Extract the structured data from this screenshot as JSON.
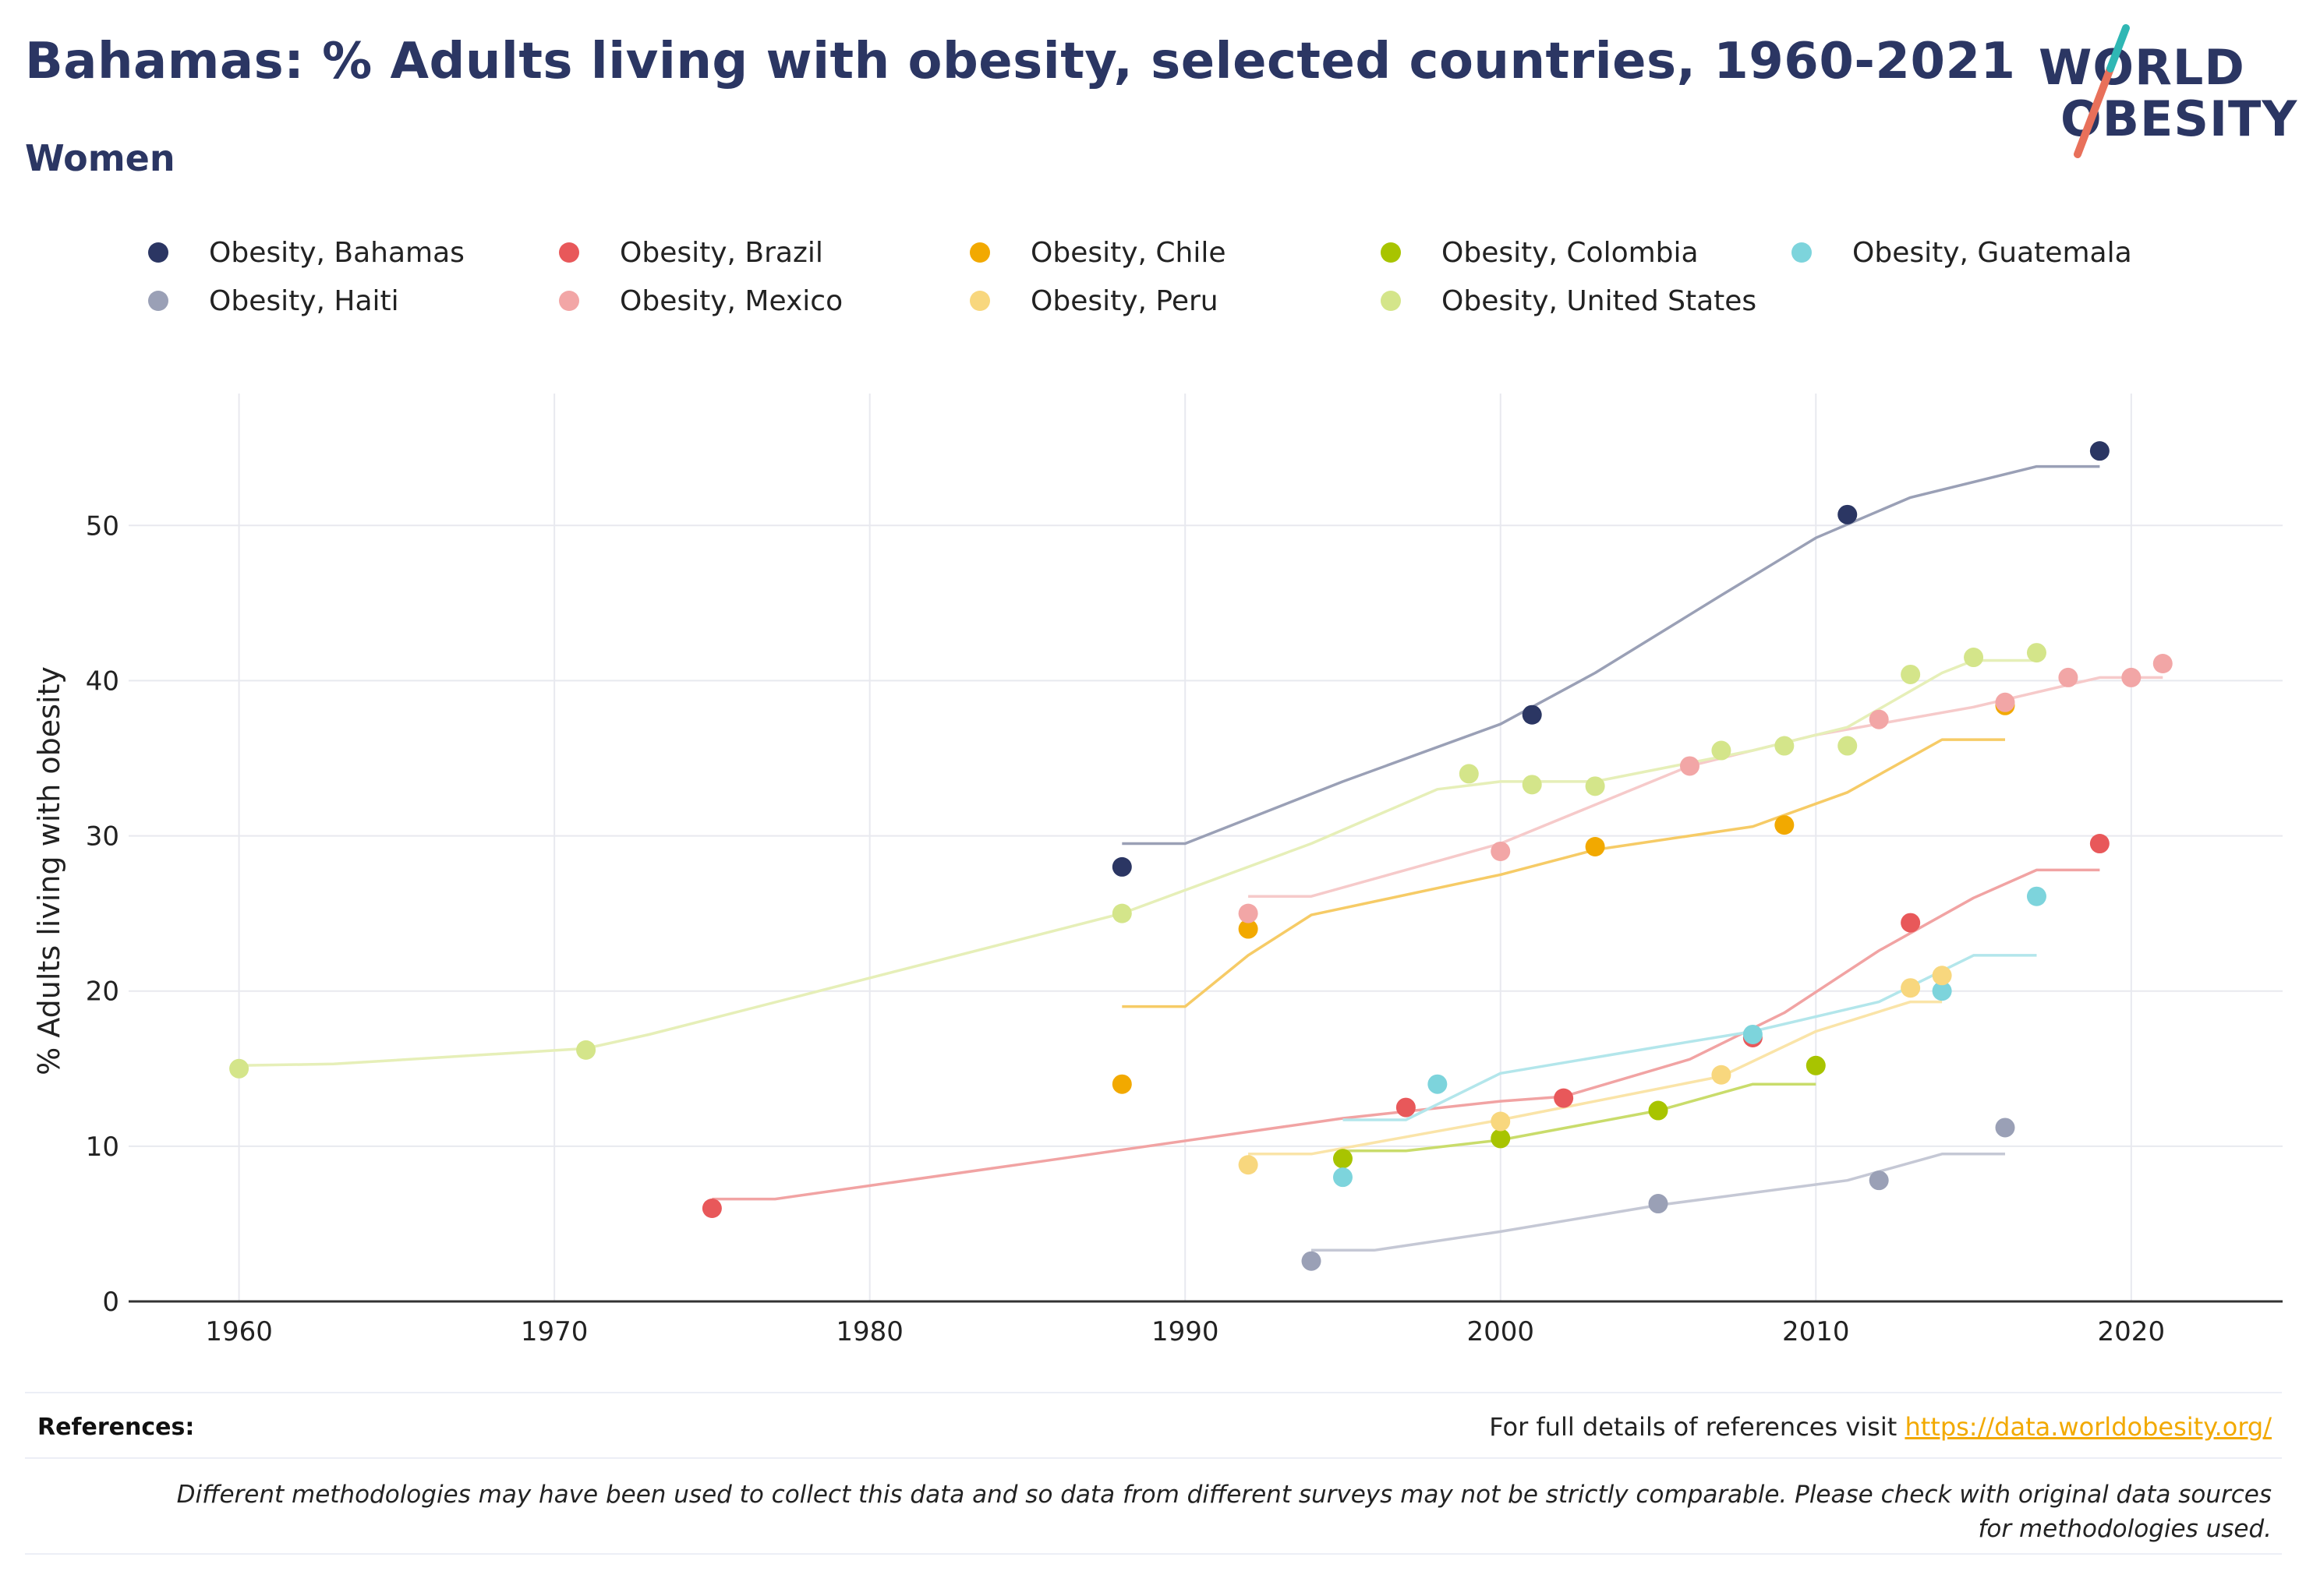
{
  "header": {
    "title": "Bahamas: % Adults living with obesity, selected countries, 1960-2021",
    "subtitle": "Women"
  },
  "logo": {
    "line1": "WORLD",
    "line2": "OBESITY"
  },
  "footer": {
    "references_label": "References:",
    "references_text": "For full details of references visit ",
    "references_link": "https://data.worldobesity.org/",
    "disclaimer": "Different methodologies may have been used to collect this data and so data from different surveys may not be strictly comparable. Please check with original data sources for methodologies used."
  },
  "chart_data": {
    "type": "scatter",
    "title": "Bahamas: % Adults living with obesity, selected countries, 1960-2021",
    "subtitle": "Women",
    "ylabel": "% Adults living with obesity",
    "xlabel": "",
    "xlim": [
      1956.5,
      2024.8
    ],
    "ylim": [
      0,
      58.5
    ],
    "xticks": [
      1960,
      1970,
      1980,
      1990,
      2000,
      2010,
      2020
    ],
    "yticks": [
      0,
      10,
      20,
      30,
      40,
      50
    ],
    "grid": true,
    "legend_position": "top",
    "series": [
      {
        "name": "Obesity, Bahamas",
        "color": "#2b3663",
        "line_color": "#9aa0b6",
        "points": [
          [
            1988,
            28.0
          ],
          [
            2001,
            37.8
          ],
          [
            2011,
            50.7
          ],
          [
            2019,
            54.8
          ]
        ],
        "trend": [
          [
            1988,
            29.5
          ],
          [
            1990,
            29.5
          ],
          [
            1995,
            33.5
          ],
          [
            2000,
            37.2
          ],
          [
            2003,
            40.5
          ],
          [
            2007,
            45.5
          ],
          [
            2010,
            49.2
          ],
          [
            2013,
            51.8
          ],
          [
            2017,
            53.8
          ],
          [
            2019,
            53.8
          ]
        ]
      },
      {
        "name": "Obesity, Brazil",
        "color": "#e8585a",
        "line_color": "#f1a3a3",
        "points": [
          [
            1975,
            6.0
          ],
          [
            1997,
            12.5
          ],
          [
            2002,
            13.1
          ],
          [
            2008,
            17.0
          ],
          [
            2013,
            24.4
          ],
          [
            2019,
            29.5
          ]
        ],
        "trend": [
          [
            1975,
            6.6
          ],
          [
            1977,
            6.6
          ],
          [
            1985,
            8.9
          ],
          [
            1995,
            11.8
          ],
          [
            2000,
            12.9
          ],
          [
            2002,
            13.2
          ],
          [
            2006,
            15.6
          ],
          [
            2009,
            18.6
          ],
          [
            2012,
            22.6
          ],
          [
            2015,
            26.0
          ],
          [
            2017,
            27.8
          ],
          [
            2019,
            27.8
          ]
        ]
      },
      {
        "name": "Obesity, Chile",
        "color": "#f2a900",
        "line_color": "#f6cb66",
        "points": [
          [
            1988,
            14.0
          ],
          [
            1992,
            24.0
          ],
          [
            2003,
            29.3
          ],
          [
            2009,
            30.7
          ],
          [
            2016,
            38.4
          ]
        ],
        "trend": [
          [
            1988,
            19.0
          ],
          [
            1990,
            19.0
          ],
          [
            1992,
            22.3
          ],
          [
            1994,
            24.9
          ],
          [
            2000,
            27.5
          ],
          [
            2003,
            29.1
          ],
          [
            2008,
            30.6
          ],
          [
            2011,
            32.8
          ],
          [
            2014,
            36.2
          ],
          [
            2016,
            36.2
          ]
        ]
      },
      {
        "name": "Obesity, Colombia",
        "color": "#a8c400",
        "line_color": "#c9dc6b",
        "points": [
          [
            1995,
            9.2
          ],
          [
            2000,
            10.5
          ],
          [
            2005,
            12.3
          ],
          [
            2010,
            15.2
          ]
        ],
        "trend": [
          [
            1995,
            9.7
          ],
          [
            1997,
            9.7
          ],
          [
            2000,
            10.4
          ],
          [
            2005,
            12.3
          ],
          [
            2008,
            14.0
          ],
          [
            2010,
            14.0
          ]
        ]
      },
      {
        "name": "Obesity, Guatemala",
        "color": "#7dd4dc",
        "line_color": "#b3e6eb",
        "points": [
          [
            1995,
            8.0
          ],
          [
            1998,
            14.0
          ],
          [
            2008,
            17.2
          ],
          [
            2014,
            20.0
          ],
          [
            2017,
            26.1
          ]
        ],
        "trend": [
          [
            1995,
            11.7
          ],
          [
            1997,
            11.7
          ],
          [
            2000,
            14.7
          ],
          [
            2005,
            16.4
          ],
          [
            2008,
            17.4
          ],
          [
            2012,
            19.3
          ],
          [
            2015,
            22.3
          ],
          [
            2017,
            22.3
          ]
        ]
      },
      {
        "name": "Obesity, Haiti",
        "color": "#9aa0b6",
        "line_color": "#c5c8d5",
        "points": [
          [
            1994,
            2.6
          ],
          [
            2005,
            6.3
          ],
          [
            2012,
            7.8
          ],
          [
            2016,
            11.2
          ]
        ],
        "trend": [
          [
            1994,
            3.3
          ],
          [
            1996,
            3.3
          ],
          [
            2000,
            4.5
          ],
          [
            2005,
            6.2
          ],
          [
            2011,
            7.8
          ],
          [
            2014,
            9.5
          ],
          [
            2016,
            9.5
          ]
        ]
      },
      {
        "name": "Obesity, Mexico",
        "color": "#f2a6a6",
        "line_color": "#f6caca",
        "points": [
          [
            1992,
            25.0
          ],
          [
            2000,
            29.0
          ],
          [
            2006,
            34.5
          ],
          [
            2012,
            37.5
          ],
          [
            2016,
            38.6
          ],
          [
            2018,
            40.2
          ],
          [
            2020,
            40.2
          ],
          [
            2021,
            41.1
          ]
        ],
        "trend": [
          [
            1992,
            26.1
          ],
          [
            1994,
            26.1
          ],
          [
            2000,
            29.5
          ],
          [
            2006,
            34.5
          ],
          [
            2010,
            36.5
          ],
          [
            2015,
            38.3
          ],
          [
            2019,
            40.2
          ],
          [
            2021,
            40.2
          ]
        ]
      },
      {
        "name": "Obesity, Peru",
        "color": "#f8d77e",
        "line_color": "#fae4a8",
        "points": [
          [
            1992,
            8.8
          ],
          [
            2000,
            11.6
          ],
          [
            2007,
            14.6
          ],
          [
            2013,
            20.2
          ],
          [
            2014,
            21.0
          ]
        ],
        "trend": [
          [
            1992,
            9.5
          ],
          [
            1994,
            9.5
          ],
          [
            2000,
            11.7
          ],
          [
            2007,
            14.5
          ],
          [
            2010,
            17.4
          ],
          [
            2013,
            19.3
          ],
          [
            2014,
            19.3
          ]
        ]
      },
      {
        "name": "Obesity, United States",
        "color": "#d4e58a",
        "line_color": "#e6efb8",
        "points": [
          [
            1960,
            15.0
          ],
          [
            1971,
            16.2
          ],
          [
            1988,
            25.0
          ],
          [
            1999,
            34.0
          ],
          [
            2001,
            33.3
          ],
          [
            2003,
            33.2
          ],
          [
            2007,
            35.5
          ],
          [
            2009,
            35.8
          ],
          [
            2011,
            35.8
          ],
          [
            2013,
            40.4
          ],
          [
            2015,
            41.5
          ],
          [
            2017,
            41.8
          ]
        ],
        "trend": [
          [
            1960,
            15.2
          ],
          [
            1963,
            15.3
          ],
          [
            1971,
            16.3
          ],
          [
            1973,
            17.2
          ],
          [
            1988,
            25.0
          ],
          [
            1994,
            29.5
          ],
          [
            1998,
            33.0
          ],
          [
            2000,
            33.5
          ],
          [
            2003,
            33.5
          ],
          [
            2008,
            35.5
          ],
          [
            2011,
            37.0
          ],
          [
            2014,
            40.5
          ],
          [
            2015,
            41.3
          ],
          [
            2017,
            41.3
          ]
        ]
      }
    ]
  }
}
